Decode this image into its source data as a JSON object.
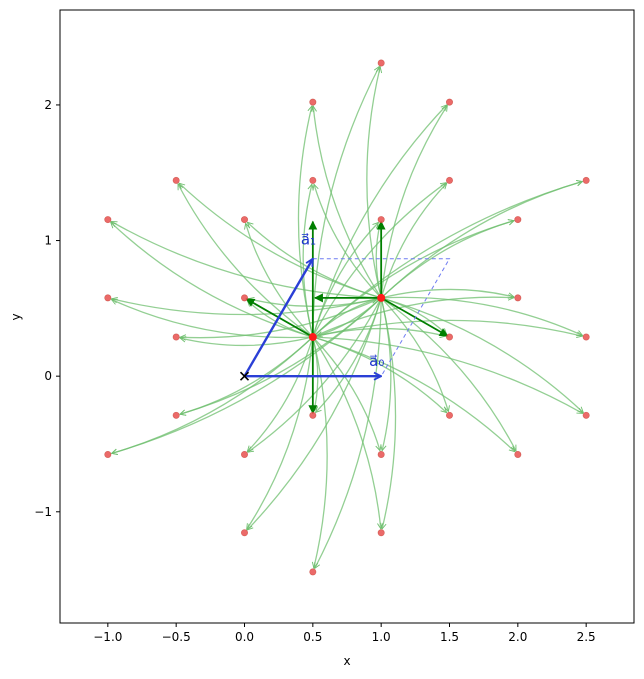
{
  "chart_data": {
    "type": "scatter",
    "title": "",
    "xlabel": "x",
    "ylabel": "y",
    "xlim": [
      -1.35,
      2.85
    ],
    "ylim": [
      -1.82,
      2.7
    ],
    "x_ticks": [
      -1.0,
      -0.5,
      0.0,
      0.5,
      1.0,
      1.5,
      2.0,
      2.5
    ],
    "x_tick_labels": [
      "−1.0",
      "−0.5",
      "0.0",
      "0.5",
      "1.0",
      "1.5",
      "2.0",
      "2.5"
    ],
    "y_ticks": [
      -1,
      0,
      1,
      2
    ],
    "y_tick_labels": [
      "−1",
      "0",
      "1",
      "2"
    ],
    "grid": false,
    "colors": {
      "points": "#e8504f",
      "centers": "#ff1a1a",
      "arrows_light": "#6fbf6f",
      "arrows_dark": "#007f00",
      "lattice_vectors": "#2a3fd6",
      "cell_outline": "#6f7cf2",
      "origin_marker": "#000000"
    },
    "origin": [
      0,
      0
    ],
    "lattice_vectors": [
      {
        "label": "a⃗₀",
        "from": [
          0,
          0
        ],
        "to": [
          1.0,
          0.0
        ]
      },
      {
        "label": "a⃗₁",
        "from": [
          0,
          0
        ],
        "to": [
          0.5,
          0.866
        ]
      }
    ],
    "unit_cell_outline": [
      [
        0.5,
        0.866
      ],
      [
        1.5,
        0.866
      ],
      [
        1.0,
        0.0
      ]
    ],
    "centers": [
      [
        0.5,
        0.2887
      ],
      [
        1.0,
        0.5774
      ]
    ],
    "points": [
      [
        1.0,
        2.3094
      ],
      [
        0.5,
        2.0207
      ],
      [
        1.5,
        2.0207
      ],
      [
        -0.5,
        1.4434
      ],
      [
        0.5,
        1.4434
      ],
      [
        1.5,
        1.4434
      ],
      [
        2.5,
        1.4434
      ],
      [
        -1.0,
        1.1547
      ],
      [
        0.0,
        1.1547
      ],
      [
        1.0,
        1.1547
      ],
      [
        2.0,
        1.1547
      ],
      [
        -1.0,
        0.5774
      ],
      [
        0.0,
        0.5774
      ],
      [
        1.0,
        0.5774
      ],
      [
        2.0,
        0.5774
      ],
      [
        -0.5,
        0.2887
      ],
      [
        0.5,
        0.2887
      ],
      [
        1.5,
        0.2887
      ],
      [
        2.5,
        0.2887
      ],
      [
        -0.5,
        -0.2887
      ],
      [
        0.5,
        -0.2887
      ],
      [
        1.5,
        -0.2887
      ],
      [
        2.5,
        -0.2887
      ],
      [
        -1.0,
        -0.5774
      ],
      [
        0.0,
        -0.5774
      ],
      [
        1.0,
        -0.5774
      ],
      [
        2.0,
        -0.5774
      ],
      [
        0.0,
        -1.1547
      ],
      [
        1.0,
        -1.1547
      ],
      [
        0.5,
        -1.4434
      ]
    ],
    "nearest_neighbors": {
      "from_center_0": [
        [
          0.5,
          1.1547
        ],
        [
          0.0,
          0.5774
        ],
        [
          0.5,
          -0.2887
        ]
      ],
      "from_center_1": [
        [
          1.0,
          1.1547
        ],
        [
          0.5,
          0.5774
        ],
        [
          1.5,
          0.2887
        ]
      ]
    }
  }
}
